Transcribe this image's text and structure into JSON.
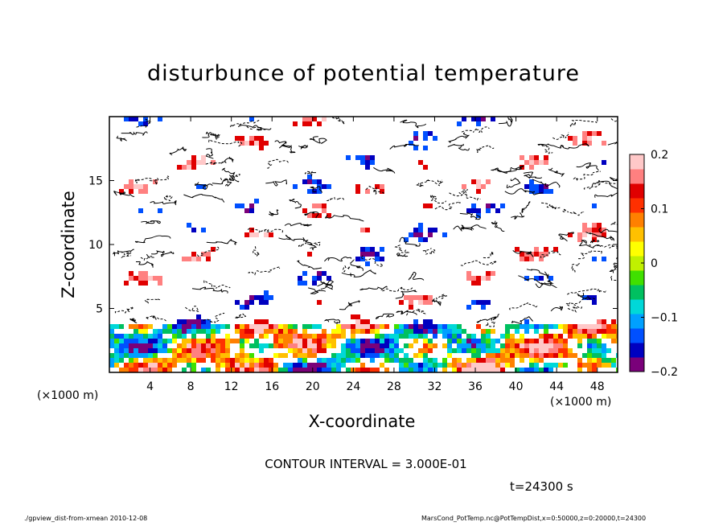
{
  "chart_data": {
    "type": "heatmap",
    "title": "disturbunce of potential temperature",
    "xlabel": "X-coordinate",
    "ylabel": "Z-coordinate",
    "x_unit_left": "(×1000 m)",
    "x_unit_right": "(×1000 m)",
    "xlim": [
      0,
      50
    ],
    "ylim": [
      0,
      20
    ],
    "x_ticks": [
      4,
      8,
      12,
      16,
      20,
      24,
      28,
      32,
      36,
      40,
      44,
      48
    ],
    "x_tick_labels": [
      "4",
      "8",
      "12",
      "16",
      "20",
      "24",
      "28",
      "32",
      "36",
      "40",
      "44",
      "48"
    ],
    "y_ticks": [
      5,
      10,
      15
    ],
    "y_tick_labels": [
      "5",
      "10",
      "15"
    ],
    "colorbar": {
      "range": [
        -0.2,
        0.2
      ],
      "ticks": [
        0.2,
        0.1,
        0,
        -0.1,
        -0.2
      ],
      "tick_labels": [
        "0.2",
        "0.1",
        "0",
        "−0.1",
        "−0.2"
      ],
      "colors": [
        "#7a007a",
        "#0000c0",
        "#0050ff",
        "#00a0ff",
        "#00d8d8",
        "#00c060",
        "#40e000",
        "#c0f000",
        "#ffff00",
        "#ffc000",
        "#ff8000",
        "#ff3000",
        "#e00000",
        "#ff8080",
        "#ffc8c8"
      ]
    },
    "contour_interval": "CONTOUR INTERVAL = 3.000E-01",
    "time_label": "t=24300 s",
    "footer_left": "./gpview_dist-from-xmean   2010-12-08",
    "footer_right": "MarsCond_PotTemp.nc@PotTempDist,x=0:50000,z=0:20000,t=24300"
  }
}
